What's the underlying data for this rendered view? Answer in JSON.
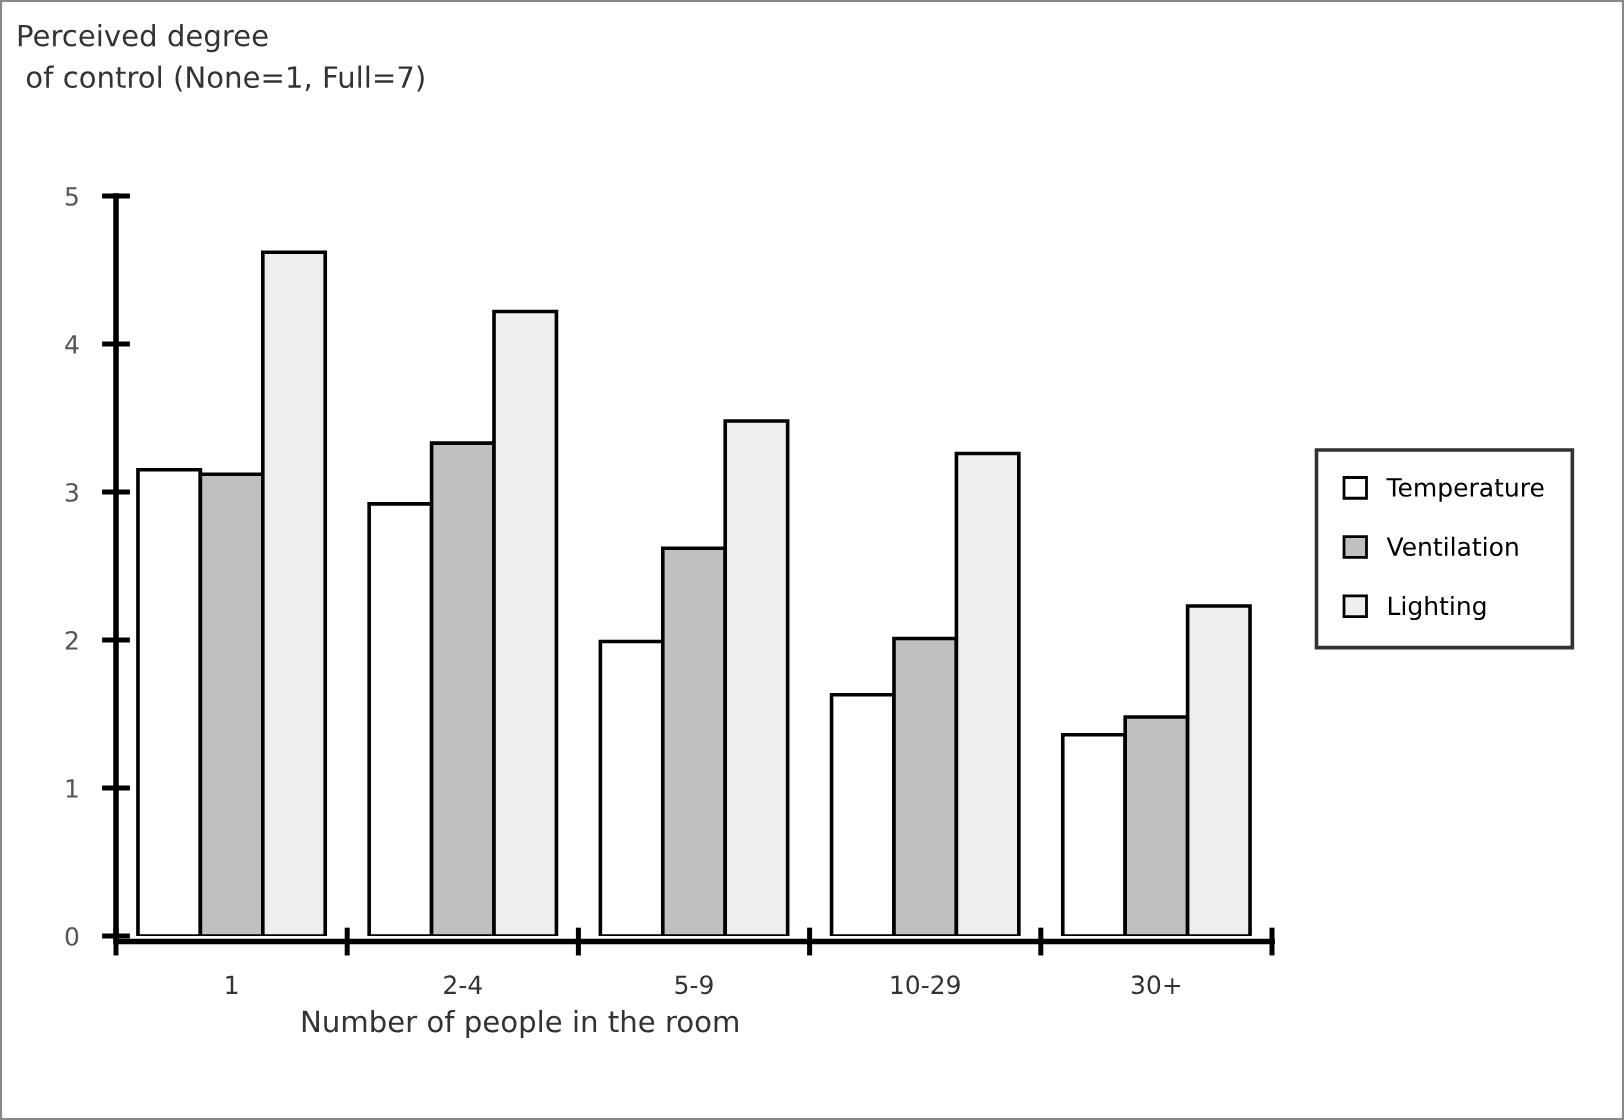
{
  "chart_data": {
    "type": "bar",
    "ylabel": "Perceived degree\n of control (None=1, Full=7)",
    "xlabel": "Number of people in the room",
    "categories": [
      "1",
      "2-4",
      "5-9",
      "10-29",
      "30+"
    ],
    "series": [
      {
        "name": "Temperature",
        "color": "#ffffff",
        "values": [
          3.15,
          2.92,
          1.99,
          1.63,
          1.36
        ]
      },
      {
        "name": "Ventilation",
        "color": "#c0c0c0",
        "values": [
          3.12,
          3.33,
          2.62,
          2.01,
          1.48
        ]
      },
      {
        "name": "Lighting",
        "color": "#eeeeee",
        "values": [
          4.62,
          4.22,
          3.48,
          3.26,
          2.23
        ]
      }
    ],
    "ylim": [
      0,
      5
    ],
    "yticks": [
      0,
      1,
      2,
      3,
      4,
      5
    ],
    "grid": false,
    "legend": "right"
  }
}
